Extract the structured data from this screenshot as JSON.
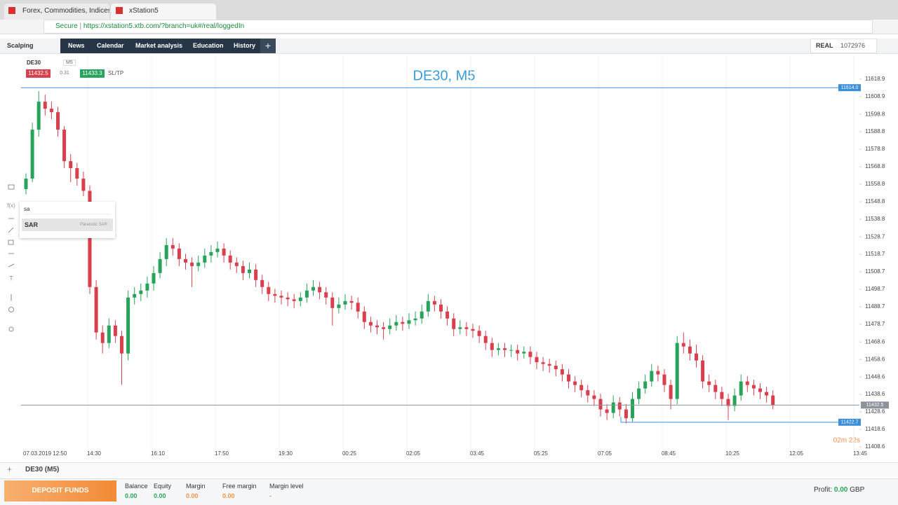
{
  "browser": {
    "tabs": [
      "Forex, Commodities, Indices,",
      "xStation5"
    ],
    "secure": "Secure",
    "url": "https://xstation5.xtb.com/?branch=uk#/real/loggedIn"
  },
  "nav": {
    "mode": "Scalping",
    "items": [
      "News",
      "Calendar",
      "Market analysis",
      "Education",
      "History"
    ],
    "account_type": "REAL",
    "account_id": "1072976"
  },
  "instrument": {
    "symbol": "DE30",
    "interval": "M5",
    "bid": "11432.5",
    "spread": "0.31",
    "ask": "11433.3",
    "sltp": "SL/TP"
  },
  "search": {
    "query": "sa",
    "result": "SAR",
    "result_desc": "Parabolic SAR"
  },
  "chart": {
    "type": "candlestick",
    "title": "DE30, M5",
    "colors": {
      "up": "#27a35a",
      "down": "#d8404d"
    },
    "ylim": [
      11401.8,
      11632.1
    ],
    "yticks": [
      11618.9,
      11608.9,
      11598.8,
      11588.8,
      11578.8,
      11568.8,
      11558.8,
      11548.8,
      11538.8,
      11528.7,
      11518.7,
      11508.7,
      11498.7,
      11488.7,
      11478.7,
      11468.6,
      11458.6,
      11448.6,
      11438.6,
      11428.6,
      11418.6,
      11408.6
    ],
    "xlabels": [
      "07.03.2019 12:50",
      "14:30",
      "16:10",
      "17:50",
      "19:30",
      "00:25",
      "02:05",
      "03:45",
      "05:25",
      "07:05",
      "08:45",
      "10:25",
      "12:05",
      "13:45"
    ],
    "price_lines": [
      {
        "value": 11614,
        "label": "11614.0",
        "color": "#3b8fd8"
      },
      {
        "value": 11432.5,
        "label": "11432.5",
        "color": "#8d939a"
      },
      {
        "value": 11422.7,
        "label": "11422.7",
        "color": "#3b8fd8"
      }
    ],
    "countdown": "02m 22s",
    "candles": [
      [
        11556,
        11565,
        11553,
        11562
      ],
      [
        11562,
        11594,
        11560,
        11590
      ],
      [
        11590,
        11612,
        11586,
        11606
      ],
      [
        11606,
        11610,
        11598,
        11602
      ],
      [
        11602,
        11606,
        11596,
        11600
      ],
      [
        11600,
        11603,
        11586,
        11590
      ],
      [
        11590,
        11592,
        11568,
        11572
      ],
      [
        11572,
        11576,
        11560,
        11568
      ],
      [
        11568,
        11571,
        11558,
        11562
      ],
      [
        11562,
        11566,
        11552,
        11555
      ],
      [
        11555,
        11558,
        11496,
        11500
      ],
      [
        11500,
        11504,
        11470,
        11474
      ],
      [
        11474,
        11478,
        11462,
        11468
      ],
      [
        11468,
        11482,
        11465,
        11478
      ],
      [
        11478,
        11481,
        11468,
        11472
      ],
      [
        11472,
        11475,
        11444,
        11462
      ],
      [
        11462,
        11498,
        11458,
        11494
      ],
      [
        11494,
        11500,
        11490,
        11496
      ],
      [
        11496,
        11502,
        11492,
        11498
      ],
      [
        11498,
        11506,
        11494,
        11502
      ],
      [
        11502,
        11512,
        11498,
        11508
      ],
      [
        11508,
        11520,
        11505,
        11516
      ],
      [
        11516,
        11528,
        11512,
        11524
      ],
      [
        11524,
        11528,
        11518,
        11522
      ],
      [
        11522,
        11525,
        11512,
        11516
      ],
      [
        11516,
        11519,
        11510,
        11514
      ],
      [
        11514,
        11517,
        11500,
        11512
      ],
      [
        11512,
        11518,
        11509,
        11514
      ],
      [
        11514,
        11522,
        11511,
        11518
      ],
      [
        11518,
        11524,
        11514,
        11520
      ],
      [
        11520,
        11526,
        11517,
        11522
      ],
      [
        11522,
        11525,
        11514,
        11518
      ],
      [
        11518,
        11521,
        11510,
        11514
      ],
      [
        11514,
        11517,
        11508,
        11512
      ],
      [
        11512,
        11515,
        11504,
        11508
      ],
      [
        11508,
        11514,
        11505,
        11510
      ],
      [
        11510,
        11513,
        11500,
        11504
      ],
      [
        11504,
        11507,
        11496,
        11500
      ],
      [
        11500,
        11503,
        11492,
        11496
      ],
      [
        11496,
        11499,
        11491,
        11495
      ],
      [
        11495,
        11498,
        11490,
        11494
      ],
      [
        11494,
        11497,
        11489,
        11493
      ],
      [
        11493,
        11496,
        11488,
        11492
      ],
      [
        11492,
        11497,
        11489,
        11494
      ],
      [
        11494,
        11502,
        11491,
        11498
      ],
      [
        11498,
        11504,
        11495,
        11500
      ],
      [
        11500,
        11503,
        11493,
        11497
      ],
      [
        11497,
        11500,
        11490,
        11494
      ],
      [
        11494,
        11497,
        11478,
        11488
      ],
      [
        11488,
        11494,
        11485,
        11490
      ],
      [
        11490,
        11496,
        11487,
        11492
      ],
      [
        11492,
        11495,
        11487,
        11491
      ],
      [
        11491,
        11494,
        11482,
        11486
      ],
      [
        11486,
        11489,
        11476,
        11480
      ],
      [
        11480,
        11483,
        11474,
        11478
      ],
      [
        11478,
        11481,
        11473,
        11477
      ],
      [
        11477,
        11480,
        11470,
        11476
      ],
      [
        11476,
        11482,
        11473,
        11478
      ],
      [
        11478,
        11484,
        11475,
        11480
      ],
      [
        11480,
        11483,
        11475,
        11479
      ],
      [
        11479,
        11485,
        11476,
        11481
      ],
      [
        11481,
        11486,
        11478,
        11482
      ],
      [
        11482,
        11490,
        11479,
        11486
      ],
      [
        11486,
        11496,
        11483,
        11492
      ],
      [
        11492,
        11495,
        11486,
        11490
      ],
      [
        11490,
        11493,
        11482,
        11486
      ],
      [
        11486,
        11489,
        11478,
        11482
      ],
      [
        11482,
        11485,
        11472,
        11476
      ],
      [
        11476,
        11481,
        11473,
        11477
      ],
      [
        11477,
        11480,
        11472,
        11476
      ],
      [
        11476,
        11479,
        11471,
        11475
      ],
      [
        11475,
        11478,
        11468,
        11472
      ],
      [
        11472,
        11475,
        11464,
        11468
      ],
      [
        11468,
        11471,
        11460,
        11464
      ],
      [
        11464,
        11468,
        11461,
        11465
      ],
      [
        11465,
        11468,
        11460,
        11464
      ],
      [
        11464,
        11467,
        11460,
        11464
      ],
      [
        11464,
        11467,
        11458,
        11462
      ],
      [
        11462,
        11466,
        11459,
        11463
      ],
      [
        11463,
        11466,
        11456,
        11460
      ],
      [
        11460,
        11463,
        11453,
        11457
      ],
      [
        11457,
        11460,
        11452,
        11456
      ],
      [
        11456,
        11459,
        11451,
        11455
      ],
      [
        11455,
        11458,
        11449,
        11453
      ],
      [
        11453,
        11456,
        11446,
        11450
      ],
      [
        11450,
        11453,
        11442,
        11446
      ],
      [
        11446,
        11449,
        11440,
        11444
      ],
      [
        11444,
        11447,
        11437,
        11441
      ],
      [
        11441,
        11444,
        11434,
        11438
      ],
      [
        11438,
        11441,
        11432,
        11436
      ],
      [
        11436,
        11439,
        11426,
        11430
      ],
      [
        11430,
        11433,
        11424,
        11428
      ],
      [
        11428,
        11438,
        11425,
        11434
      ],
      [
        11434,
        11437,
        11426,
        11430
      ],
      [
        11430,
        11433,
        11422,
        11425
      ],
      [
        11425,
        11440,
        11423,
        11436
      ],
      [
        11436,
        11446,
        11433,
        11442
      ],
      [
        11442,
        11450,
        11439,
        11446
      ],
      [
        11446,
        11456,
        11443,
        11452
      ],
      [
        11452,
        11455,
        11446,
        11450
      ],
      [
        11450,
        11453,
        11440,
        11444
      ],
      [
        11444,
        11447,
        11430,
        11436
      ],
      [
        11436,
        11472,
        11433,
        11468
      ],
      [
        11468,
        11474,
        11462,
        11466
      ],
      [
        11466,
        11470,
        11458,
        11462
      ],
      [
        11462,
        11467,
        11454,
        11458
      ],
      [
        11458,
        11461,
        11442,
        11446
      ],
      [
        11446,
        11450,
        11440,
        11444
      ],
      [
        11444,
        11447,
        11436,
        11440
      ],
      [
        11440,
        11443,
        11432,
        11436
      ],
      [
        11436,
        11439,
        11424,
        11432
      ],
      [
        11432,
        11442,
        11429,
        11438
      ],
      [
        11438,
        11450,
        11435,
        11446
      ],
      [
        11446,
        11449,
        11440,
        11444
      ],
      [
        11444,
        11447,
        11438,
        11442
      ],
      [
        11442,
        11445,
        11436,
        11440
      ],
      [
        11440,
        11443,
        11434,
        11438
      ],
      [
        11438,
        11441,
        11430,
        11432.5
      ]
    ]
  },
  "bottom_tab": "DE30 (M5)",
  "footer": {
    "deposit": "DEPOSIT FUNDS",
    "stats": [
      {
        "label": "Balance",
        "value": "0.00"
      },
      {
        "label": "Equity",
        "value": "0.00"
      },
      {
        "label": "Margin",
        "value": "0.00"
      },
      {
        "label": "Free margin",
        "value": "0.00"
      },
      {
        "label": "Margin level",
        "value": "-"
      }
    ],
    "profit_label": "Profit:",
    "profit_value": "0.00",
    "currency": "GBP"
  }
}
